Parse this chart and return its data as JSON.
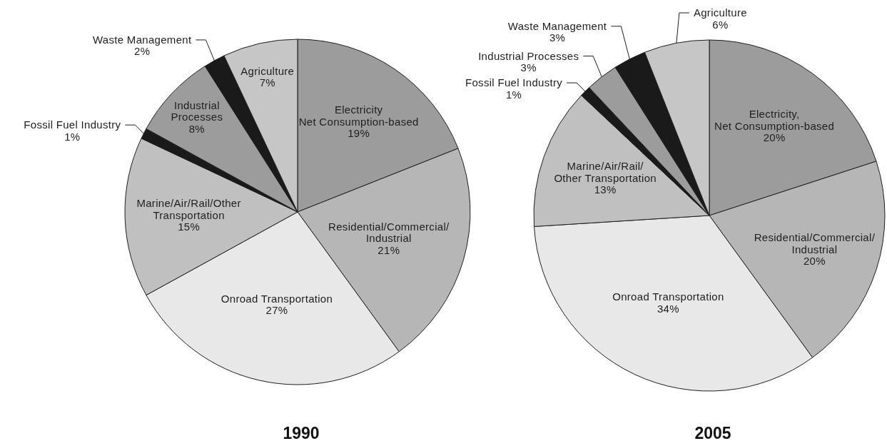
{
  "chart_data": [
    {
      "type": "pie",
      "title": "1990",
      "categories": [
        "Electricity\nNet Consumption-based",
        "Residential/Commercial/\nIndustrial",
        "Onroad Transportation",
        "Marine/Air/Rail/Other\nTransportation",
        "Fossil Fuel Industry",
        "Industrial\nProcesses",
        "Waste Management",
        "Agriculture"
      ],
      "values": [
        19,
        21,
        27,
        15,
        1,
        8,
        2,
        7
      ],
      "colors": [
        "#9c9c9c",
        "#b6b6b6",
        "#e8e8e8",
        "#c0c0c0",
        "#1a1a1a",
        "#9c9c9c",
        "#1a1a1a",
        "#c6c6c6"
      ],
      "value_labels": [
        "19%",
        "21%",
        "27%",
        "15%",
        "1%",
        "8%",
        "2%",
        "7%"
      ]
    },
    {
      "type": "pie",
      "title": "2005",
      "categories": [
        "Electricity,\nNet Consumption-based",
        "Residential/Commercial/\nIndustrial",
        "Onroad Transportation",
        "Marine/Air/Rail/\nOther Transportation",
        "Fossil Fuel Industry",
        "Industrial Processes",
        "Waste Management",
        "Agriculture"
      ],
      "values": [
        20,
        20,
        34,
        13,
        1,
        3,
        3,
        6
      ],
      "colors": [
        "#9c9c9c",
        "#b6b6b6",
        "#e8e8e8",
        "#c0c0c0",
        "#1a1a1a",
        "#9c9c9c",
        "#1a1a1a",
        "#c6c6c6"
      ],
      "value_labels": [
        "20%",
        "20%",
        "34%",
        "13%",
        "1%",
        "3%",
        "3%",
        "6%"
      ]
    }
  ]
}
